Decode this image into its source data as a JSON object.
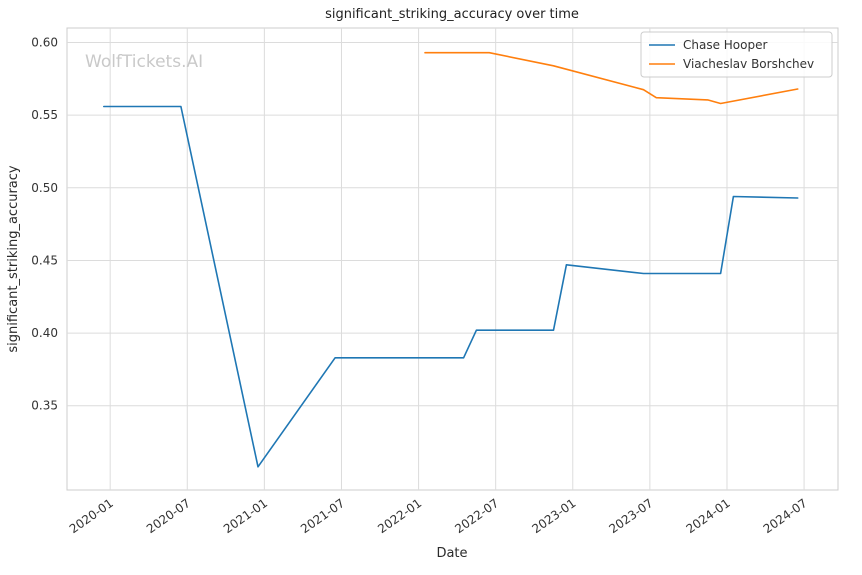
{
  "chart_data": {
    "type": "line",
    "title": "significant_striking_accuracy over time",
    "xlabel": "Date",
    "ylabel": "significant_striking_accuracy",
    "watermark": "WolfTickets.AI",
    "legend_position": "upper right",
    "grid": true,
    "x_ticks": [
      "2020-01",
      "2020-07",
      "2021-01",
      "2021-07",
      "2022-01",
      "2022-07",
      "2023-01",
      "2023-07",
      "2024-01",
      "2024-07"
    ],
    "y_ticks": [
      0.35,
      0.4,
      0.45,
      0.5,
      0.55,
      0.6
    ],
    "ylim": [
      0.292,
      0.61
    ],
    "xlim_years": [
      2019.72,
      2024.72
    ],
    "series": [
      {
        "name": "Chase Hooper",
        "color": "#1f77b4",
        "points": [
          [
            "2019-12",
            0.556
          ],
          [
            "2020-06",
            0.556
          ],
          [
            "2020-12",
            0.308
          ],
          [
            "2021-06",
            0.383
          ],
          [
            "2022-04",
            0.383
          ],
          [
            "2022-05",
            0.402
          ],
          [
            "2022-11",
            0.402
          ],
          [
            "2022-12",
            0.447
          ],
          [
            "2023-06",
            0.441
          ],
          [
            "2023-12",
            0.441
          ],
          [
            "2024-01",
            0.494
          ],
          [
            "2024-06",
            0.493
          ]
        ]
      },
      {
        "name": "Viacheslav Borshchev",
        "color": "#ff7f0e",
        "points": [
          [
            "2022-01",
            0.593
          ],
          [
            "2022-06",
            0.593
          ],
          [
            "2022-11",
            0.584
          ],
          [
            "2023-06",
            0.5675
          ],
          [
            "2023-07",
            0.562
          ],
          [
            "2023-11",
            0.5605
          ],
          [
            "2023-12",
            0.558
          ],
          [
            "2024-06",
            0.568
          ]
        ]
      }
    ]
  }
}
